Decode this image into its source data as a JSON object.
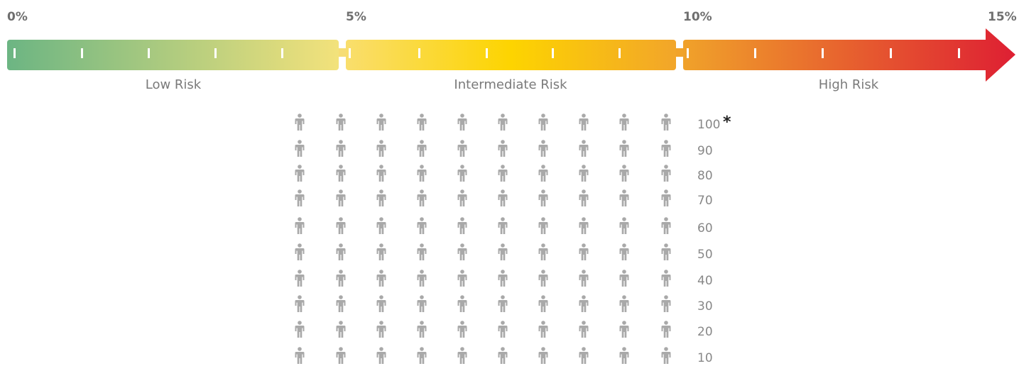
{
  "risk_scale": {
    "ticks": [
      "0%",
      "5%",
      "10%",
      "15%"
    ],
    "bands": [
      {
        "label": "Low Risk",
        "from": 0,
        "to": 5
      },
      {
        "label": "Intermediate Risk",
        "from": 5,
        "to": 10
      },
      {
        "label": "High Risk",
        "from": 10,
        "to": 15
      }
    ],
    "colors": {
      "low_start": "#6cb583",
      "low_end": "#f3e27b",
      "mid_start": "#f9de6d",
      "mid_peak": "#fdd400",
      "mid_end": "#f2a52a",
      "high_start": "#f0a22a",
      "high_end": "#de1f33",
      "tick_mark": "#ffffff"
    }
  },
  "people_grid": {
    "columns": 10,
    "row_labels": [
      "100",
      "90",
      "80",
      "70",
      "60",
      "50",
      "40",
      "30",
      "20",
      "10"
    ],
    "icon": "person-icon",
    "icon_color": "#a9a9a9",
    "footnote_marker": "*"
  }
}
